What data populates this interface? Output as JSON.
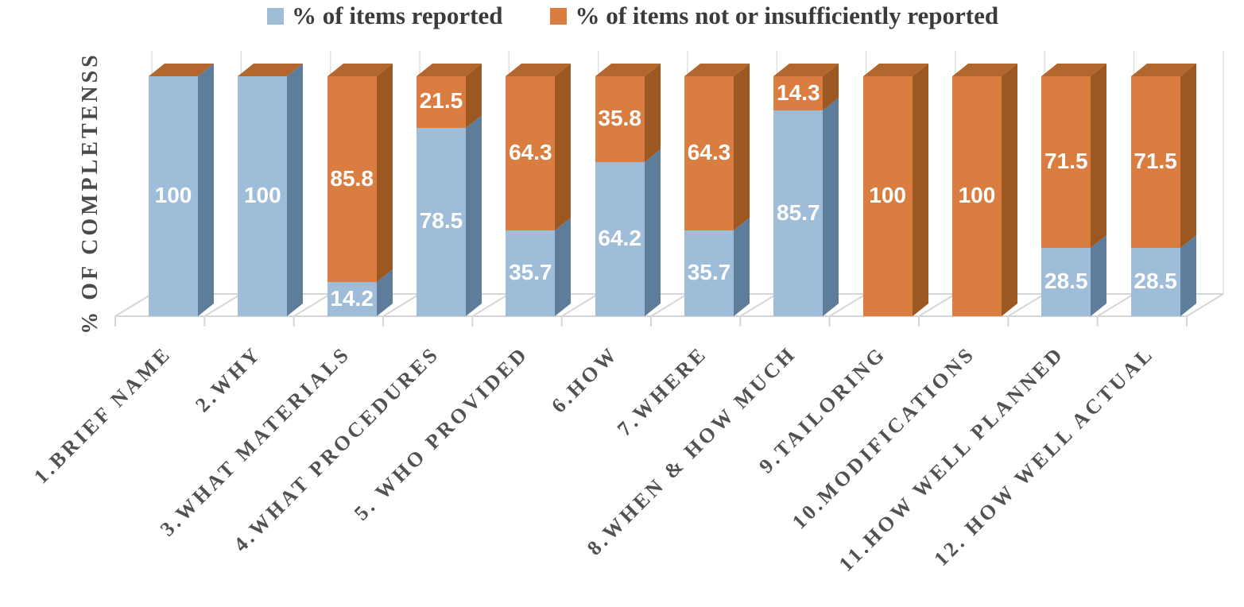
{
  "chart_data": {
    "type": "bar",
    "stacked": true,
    "projection": "3d",
    "title": "",
    "xlabel": "",
    "ylabel": "% OF COMPLETENSS",
    "ylim": [
      0,
      100
    ],
    "y_tick_labels_shown": false,
    "legend_position": "top",
    "value_labels_shown": true,
    "categories": [
      "1.BRIEF NAME",
      "2.WHY",
      "3.WHAT MATERIALS",
      "4.WHAT PROCEDURES",
      "5. WHO PROVIDED",
      "6.HOW",
      "7.WHERE",
      "8.WHEN & HOW MUCH",
      "9.TAILORING",
      "10.MODIFICATIONS",
      "11.HOW WELL PLANNED",
      "12. HOW WELL ACTUAL"
    ],
    "series": [
      {
        "name": "% of items reported",
        "color": "#9fbcd8",
        "side_color": "#5e7d9b",
        "values": [
          100,
          100,
          14.2,
          78.5,
          35.7,
          64.2,
          35.7,
          85.7,
          0,
          0,
          28.5,
          28.5
        ]
      },
      {
        "name": "% of items not or insufficiently reported",
        "color": "#d97d40",
        "side_color": "#9d5822",
        "top_color": "#b2672e",
        "values": [
          0,
          0,
          85.8,
          21.5,
          64.3,
          35.8,
          64.3,
          14.3,
          100,
          100,
          71.5,
          71.5
        ]
      }
    ]
  },
  "colors": {
    "grid": "#d6d6d6",
    "wall_grid": "#dedede",
    "value_label": "#ffffff",
    "legend_text": "#3b3b3b",
    "axis_text": "#515151"
  }
}
